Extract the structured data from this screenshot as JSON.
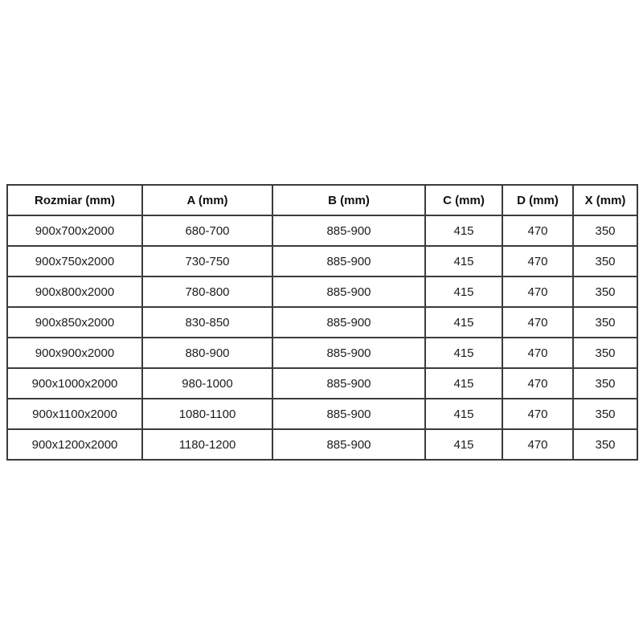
{
  "chart_data": {
    "type": "table",
    "columns": [
      "Rozmiar (mm)",
      "A (mm)",
      "B (mm)",
      "C (mm)",
      "D (mm)",
      "X (mm)"
    ],
    "rows": [
      [
        "900x700x2000",
        "680-700",
        "885-900",
        "415",
        "470",
        "350"
      ],
      [
        "900x750x2000",
        "730-750",
        "885-900",
        "415",
        "470",
        "350"
      ],
      [
        "900x800x2000",
        "780-800",
        "885-900",
        "415",
        "470",
        "350"
      ],
      [
        "900x850x2000",
        "830-850",
        "885-900",
        "415",
        "470",
        "350"
      ],
      [
        "900x900x2000",
        "880-900",
        "885-900",
        "415",
        "470",
        "350"
      ],
      [
        "900x1000x2000",
        "980-1000",
        "885-900",
        "415",
        "470",
        "350"
      ],
      [
        "900x1100x2000",
        "1080-1100",
        "885-900",
        "415",
        "470",
        "350"
      ],
      [
        "900x1200x2000",
        "1180-1200",
        "885-900",
        "415",
        "470",
        "350"
      ]
    ]
  },
  "colors": {
    "border": "#3b3b3b",
    "text": "#1c1c1c",
    "background": "#ffffff"
  }
}
